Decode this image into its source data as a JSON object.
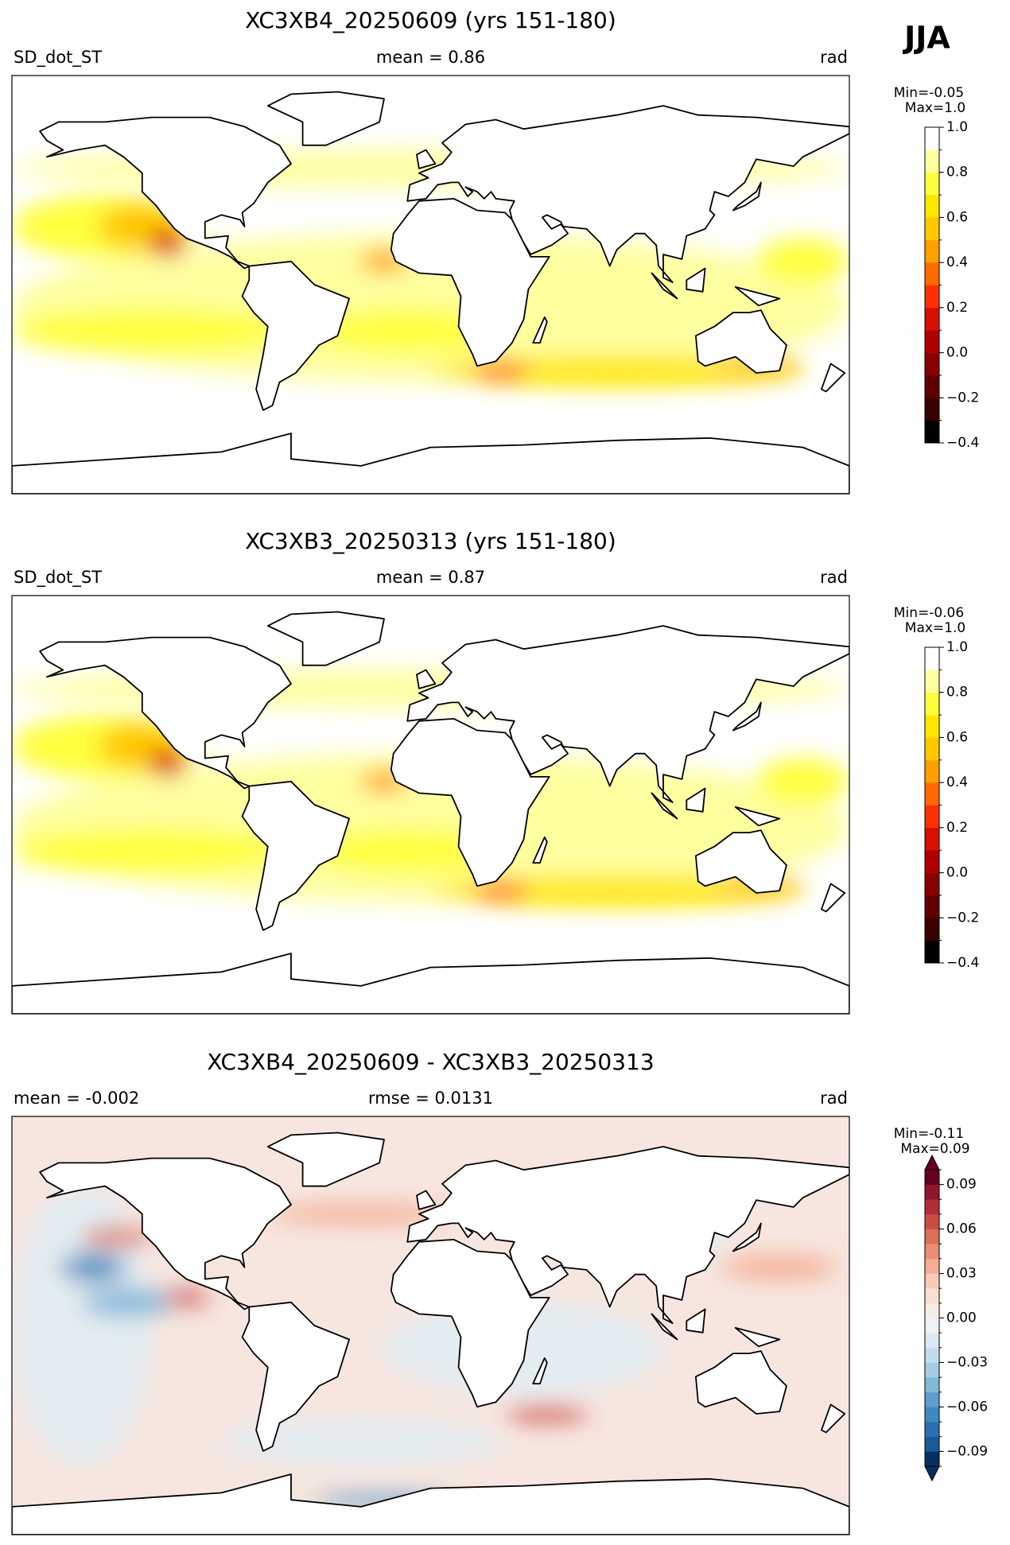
{
  "season": "JJA",
  "panels": [
    {
      "title": "XC3XB4_20250609 (yrs 151-180)",
      "left": "SD_dot_ST",
      "center": "mean = 0.86",
      "right": "rad",
      "min_label": "Min=-0.05",
      "max_label": "Max=1.0",
      "colorbar": {
        "lim": [
          -0.4,
          1.0
        ],
        "ticks": [
          {
            "value": -0.4,
            "label": "−0.4"
          },
          {
            "value": -0.2,
            "label": "−0.2"
          },
          {
            "value": 0,
            "label": "0.0"
          },
          0.2,
          0.4,
          0.6,
          0.8,
          {
            "value": 1,
            "label": "1.0"
          }
        ],
        "colors": [
          "#000000",
          "#3a0000",
          "#600000",
          "#8a0000",
          "#b00000",
          "#d81000",
          "#ff3000",
          "#ff6a00",
          "#ffa000",
          "#ffc800",
          "#ffe800",
          "#ffff40",
          "#ffffa0",
          "#ffffff"
        ],
        "extend": false
      }
    },
    {
      "title": "XC3XB3_20250313 (yrs 151-180)",
      "left": "SD_dot_ST",
      "center": "mean = 0.87",
      "right": "rad",
      "min_label": "Min=-0.06",
      "max_label": "Max=1.0",
      "colorbar": {
        "lim": [
          -0.4,
          1.0
        ],
        "ticks": [
          {
            "value": -0.4,
            "label": "−0.4"
          },
          {
            "value": -0.2,
            "label": "−0.2"
          },
          {
            "value": 0,
            "label": "0.0"
          },
          0.2,
          0.4,
          0.6,
          0.8,
          {
            "value": 1,
            "label": "1.0"
          }
        ],
        "colors": [
          "#000000",
          "#3a0000",
          "#600000",
          "#8a0000",
          "#b00000",
          "#d81000",
          "#ff3000",
          "#ff6a00",
          "#ffa000",
          "#ffc800",
          "#ffe800",
          "#ffff40",
          "#ffffa0",
          "#ffffff"
        ],
        "extend": false
      }
    },
    {
      "title": "XC3XB4_20250609 - XC3XB3_20250313",
      "left": "mean = -0.002",
      "center": "rmse = 0.0131",
      "right": "rad",
      "min_label": "Min=-0.11",
      "max_label": "Max=0.09",
      "colorbar": {
        "lim": [
          -0.1,
          0.1
        ],
        "ticks": [
          {
            "value": -0.09,
            "label": "−0.09"
          },
          {
            "value": -0.06,
            "label": "−0.06"
          },
          {
            "value": -0.03,
            "label": "−0.03"
          },
          {
            "value": 0,
            "label": "0.00"
          },
          0.03,
          0.06,
          0.09
        ],
        "colors": [
          "#053061",
          "#1b5a9a",
          "#2b6fb0",
          "#3f88c0",
          "#5e9ecd",
          "#84b8d9",
          "#a6cde4",
          "#c3dcec",
          "#dbe9f2",
          "#edf2f5",
          "#f7ede8",
          "#fbdfd2",
          "#f9cbb5",
          "#f4ae95",
          "#e98e75",
          "#dd6e5a",
          "#ca4c45",
          "#b52d37",
          "#93152d",
          "#67001f"
        ],
        "extend": true
      }
    }
  ]
}
